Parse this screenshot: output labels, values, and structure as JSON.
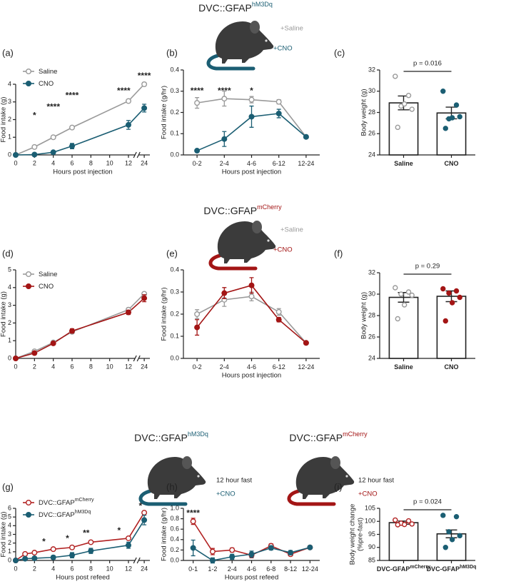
{
  "figure": {
    "row1": {
      "title": "DVC::GFAP",
      "title_sup": "hM3Dq",
      "saline": "+Saline",
      "cno": "+CNO"
    },
    "row2": {
      "title": "DVC::GFAP",
      "title_sup": "mCherry",
      "saline": "+Saline",
      "cno": "+CNO"
    },
    "row3": {
      "left_title": "DVC::GFAP",
      "left_sup": "hM3Dq",
      "left_fast": "12 hour fast",
      "left_cno": "+CNO",
      "right_title": "DVC::GFAP",
      "right_sup": "mCherry",
      "right_fast": "12 hour fast",
      "right_cno": "+CNO"
    }
  },
  "chart_data": [
    {
      "panel": "(a)",
      "type": "line",
      "x": [
        0,
        2,
        4,
        6,
        12,
        24
      ],
      "xlim": [
        0,
        24.6
      ],
      "x_break": [
        12.7,
        23.4
      ],
      "xticks": [
        0,
        2,
        4,
        6,
        8,
        10,
        12,
        24
      ],
      "ylim": [
        0,
        4
      ],
      "yticks": [
        0,
        1,
        2,
        3,
        4
      ],
      "xlabel": "Hours post injection",
      "ylabel": "Food intake (g)",
      "legend": "upper left",
      "series": [
        {
          "name": "Saline",
          "color": "#9a9a9a",
          "marker": "hollow",
          "values": [
            0,
            0.45,
            1.0,
            1.55,
            3.05,
            4.0
          ],
          "errors": [
            0,
            0.03,
            0.04,
            0.05,
            0.05,
            0.1
          ]
        },
        {
          "name": "CNO",
          "color": "#1b5e73",
          "marker": "filled",
          "values": [
            0,
            0.02,
            0.15,
            0.5,
            1.7,
            2.65
          ],
          "errors": [
            0,
            0.01,
            0.03,
            0.15,
            0.25,
            0.22
          ]
        }
      ],
      "annotations": [
        {
          "x": 2,
          "y": 2.2,
          "text": "*"
        },
        {
          "x": 4,
          "y": 2.7,
          "text": "****"
        },
        {
          "x": 6,
          "y": 3.35,
          "text": "****"
        },
        {
          "x": 11.5,
          "y": 3.6,
          "text": "****"
        },
        {
          "x": 24,
          "y": 4.45,
          "text": "****"
        }
      ]
    },
    {
      "panel": "(b)",
      "type": "line",
      "categories": [
        "0-2",
        "2-4",
        "4-6",
        "6-12",
        "12-24"
      ],
      "ylim": [
        0,
        0.4
      ],
      "yticks": [
        {
          "value": 0,
          "label": "0.0"
        },
        0.1,
        0.2,
        0.3,
        0.4
      ],
      "xlabel": "Hours post injection",
      "ylabel": "Food intake (g/hr)",
      "series": [
        {
          "name": "Saline",
          "color": "#9a9a9a",
          "marker": "hollow",
          "values": [
            0.245,
            0.265,
            0.26,
            0.25,
            0.085
          ],
          "errors": [
            0.025,
            0.035,
            0.015,
            0.01,
            0.005
          ]
        },
        {
          "name": "CNO",
          "color": "#1b5e73",
          "marker": "filled",
          "values": [
            0.02,
            0.075,
            0.18,
            0.195,
            0.085
          ],
          "errors": [
            0.005,
            0.035,
            0.05,
            0.02,
            0.005
          ]
        }
      ],
      "annotations": [
        {
          "x": "0-2",
          "y": 0.3,
          "text": "****"
        },
        {
          "x": "2-4",
          "y": 0.3,
          "text": "****"
        },
        {
          "x": "4-6",
          "y": 0.3,
          "text": "*"
        }
      ]
    },
    {
      "panel": "(c)",
      "type": "bar",
      "categories": [
        "Saline",
        "CNO"
      ],
      "values": [
        28.9,
        27.95
      ],
      "errors": [
        0.65,
        0.55
      ],
      "points": [
        [
          31.4,
          29.6,
          28.6,
          28.3,
          28.8,
          26.6
        ],
        [
          30.0,
          28.7,
          27.4,
          27.6,
          27.5,
          26.5
        ]
      ],
      "point_colors": [
        "#9a9a9a",
        "#1b5e73"
      ],
      "point_hollow": [
        true,
        false
      ],
      "ylim": [
        24,
        32
      ],
      "yticks": [
        24,
        26,
        28,
        30,
        32
      ],
      "ylabel": "Body weight (g)",
      "annotation": "p = 0.016"
    },
    {
      "panel": "(d)",
      "type": "line",
      "x": [
        0,
        2,
        4,
        6,
        12,
        24
      ],
      "xlim": [
        0,
        24.6
      ],
      "x_break": [
        12.7,
        23.4
      ],
      "xticks": [
        0,
        2,
        4,
        6,
        8,
        10,
        12,
        24
      ],
      "ylim": [
        0,
        5
      ],
      "yticks": [
        0,
        1,
        2,
        3,
        4,
        5
      ],
      "ylabel": "Food intake (g)",
      "legend": "upper left",
      "series": [
        {
          "name": "Saline",
          "color": "#9a9a9a",
          "marker": "hollow",
          "values": [
            0,
            0.4,
            0.9,
            1.5,
            2.75,
            3.65
          ],
          "errors": [
            0,
            0.03,
            0.05,
            0.08,
            0.1,
            0.08
          ]
        },
        {
          "name": "CNO",
          "color": "#a31515",
          "marker": "filled",
          "values": [
            0,
            0.3,
            0.85,
            1.55,
            2.6,
            3.4
          ],
          "errors": [
            0,
            0.03,
            0.08,
            0.12,
            0.12,
            0.2
          ]
        }
      ]
    },
    {
      "panel": "(e)",
      "type": "line",
      "categories": [
        "0-2",
        "2-4",
        "4-6",
        "6-12",
        "12-24"
      ],
      "ylim": [
        0,
        0.4
      ],
      "yticks": [
        {
          "value": 0,
          "label": "0.0"
        },
        0.1,
        0.2,
        0.3,
        0.4
      ],
      "xlabel": "Hours post injection",
      "ylabel": "Food intake (g/hr)",
      "series": [
        {
          "name": "Saline",
          "color": "#9a9a9a",
          "marker": "hollow",
          "values": [
            0.2,
            0.265,
            0.28,
            0.21,
            0.07
          ],
          "errors": [
            0.02,
            0.03,
            0.02,
            0.015,
            0.005
          ]
        },
        {
          "name": "CNO",
          "color": "#a31515",
          "marker": "filled",
          "values": [
            0.14,
            0.295,
            0.33,
            0.175,
            0.07
          ],
          "errors": [
            0.035,
            0.025,
            0.035,
            0.01,
            0.005
          ]
        }
      ]
    },
    {
      "panel": "(f)",
      "type": "bar",
      "categories": [
        "Saline",
        "CNO"
      ],
      "values": [
        29.7,
        29.8
      ],
      "errors": [
        0.45,
        0.5
      ],
      "points": [
        [
          30.6,
          30.2,
          30.0,
          29.9,
          29.0,
          27.7
        ],
        [
          30.5,
          30.3,
          30.1,
          29.7,
          29.2,
          27.5
        ]
      ],
      "point_colors": [
        "#9a9a9a",
        "#a31515"
      ],
      "point_hollow": [
        true,
        false
      ],
      "ylim": [
        24,
        32
      ],
      "yticks": [
        24,
        26,
        28,
        30,
        32
      ],
      "ylabel": "Body weight (g)",
      "annotation": "p = 0.29"
    },
    {
      "panel": "(g)",
      "type": "line",
      "x": [
        0,
        1,
        2,
        4,
        6,
        8,
        12,
        24
      ],
      "xlim": [
        0,
        24.6
      ],
      "x_break": [
        12.7,
        23.4
      ],
      "xticks": [
        0,
        2,
        4,
        6,
        8,
        10,
        12,
        24
      ],
      "ylim": [
        0,
        6
      ],
      "yticks": [
        0,
        1,
        2,
        3,
        4,
        5,
        6
      ],
      "xlabel": "Hours post refeed",
      "ylabel": "Food intake (g)",
      "legend": "upper left",
      "series": [
        {
          "name": "DVC::GFAP",
          "name_sup": "mCherry",
          "color": "#b22222",
          "marker": "hollow",
          "values": [
            0,
            0.75,
            0.9,
            1.3,
            1.5,
            2.1,
            2.55,
            5.5
          ],
          "errors": [
            0,
            0.05,
            0.05,
            0.08,
            0.08,
            0.1,
            0.1,
            0.15
          ]
        },
        {
          "name": "DVC::GFAP",
          "name_sup": "hM3Dq",
          "color": "#1b5e73",
          "marker": "filled",
          "values": [
            0,
            0.2,
            0.25,
            0.35,
            0.6,
            1.1,
            1.75,
            4.65
          ],
          "errors": [
            0,
            0.05,
            0.05,
            0.2,
            0.3,
            0.3,
            0.35,
            0.55
          ]
        }
      ],
      "annotations": [
        {
          "x": 3,
          "y": 2.1,
          "text": "*"
        },
        {
          "x": 5.5,
          "y": 2.5,
          "text": "*"
        },
        {
          "x": 7.5,
          "y": 3.1,
          "text": "**"
        },
        {
          "x": 11,
          "y": 3.4,
          "text": "*"
        },
        {
          "x": 23.6,
          "y": 6.2,
          "text": "*"
        }
      ]
    },
    {
      "panel": "(h)",
      "type": "line",
      "categories": [
        "0-1",
        "1-2",
        "2-4",
        "4-6",
        "6-8",
        "8-12",
        "12-24"
      ],
      "ylim": [
        0,
        1.0
      ],
      "yticks": [
        {
          "value": 0,
          "label": "0.0"
        },
        0.2,
        0.4,
        0.6,
        0.8,
        {
          "value": 1.0,
          "label": "1.0"
        }
      ],
      "xlabel": "Hours post refeed",
      "ylabel": "Food intake (g/hr)",
      "series": [
        {
          "name": "DVC::GFAP",
          "name_sup": "mCherry",
          "color": "#b22222",
          "marker": "hollow",
          "values": [
            0.75,
            0.17,
            0.2,
            0.1,
            0.28,
            0.12,
            0.25
          ],
          "errors": [
            0.06,
            0.06,
            0.04,
            0.05,
            0.04,
            0.03,
            0.02
          ]
        },
        {
          "name": "DVC::GFAP",
          "name_sup": "hM3Dq",
          "color": "#1b5e73",
          "marker": "filled",
          "values": [
            0.24,
            0.0,
            0.07,
            0.12,
            0.24,
            0.15,
            0.25
          ],
          "errors": [
            0.15,
            0.05,
            0.05,
            0.06,
            0.04,
            0.04,
            0.02
          ]
        }
      ],
      "annotations": [
        {
          "x": "0-1",
          "y": 0.9,
          "text": "****"
        }
      ]
    },
    {
      "panel": "(i)",
      "type": "bar",
      "categories": [
        "DVC-GFAP",
        "DVC-GFAP"
      ],
      "category_sup": [
        "mCherry",
        "hM3Dq"
      ],
      "values": [
        99.5,
        95.2
      ],
      "errors": [
        0.6,
        1.5
      ],
      "points": [
        [
          100.5,
          100.2,
          99.3,
          99.0,
          98.8,
          98.7
        ],
        [
          102.3,
          101.8,
          96.0,
          94.5,
          93.0,
          90.0
        ]
      ],
      "point_colors": [
        "#b22222",
        "#1b5e73"
      ],
      "point_hollow": [
        true,
        false
      ],
      "ylim": [
        85,
        105
      ],
      "yticks": [
        85,
        90,
        95,
        100,
        105
      ],
      "ylabel": [
        "Body weight change",
        "(%pre-fast)"
      ],
      "annotation": "p = 0.024"
    }
  ]
}
